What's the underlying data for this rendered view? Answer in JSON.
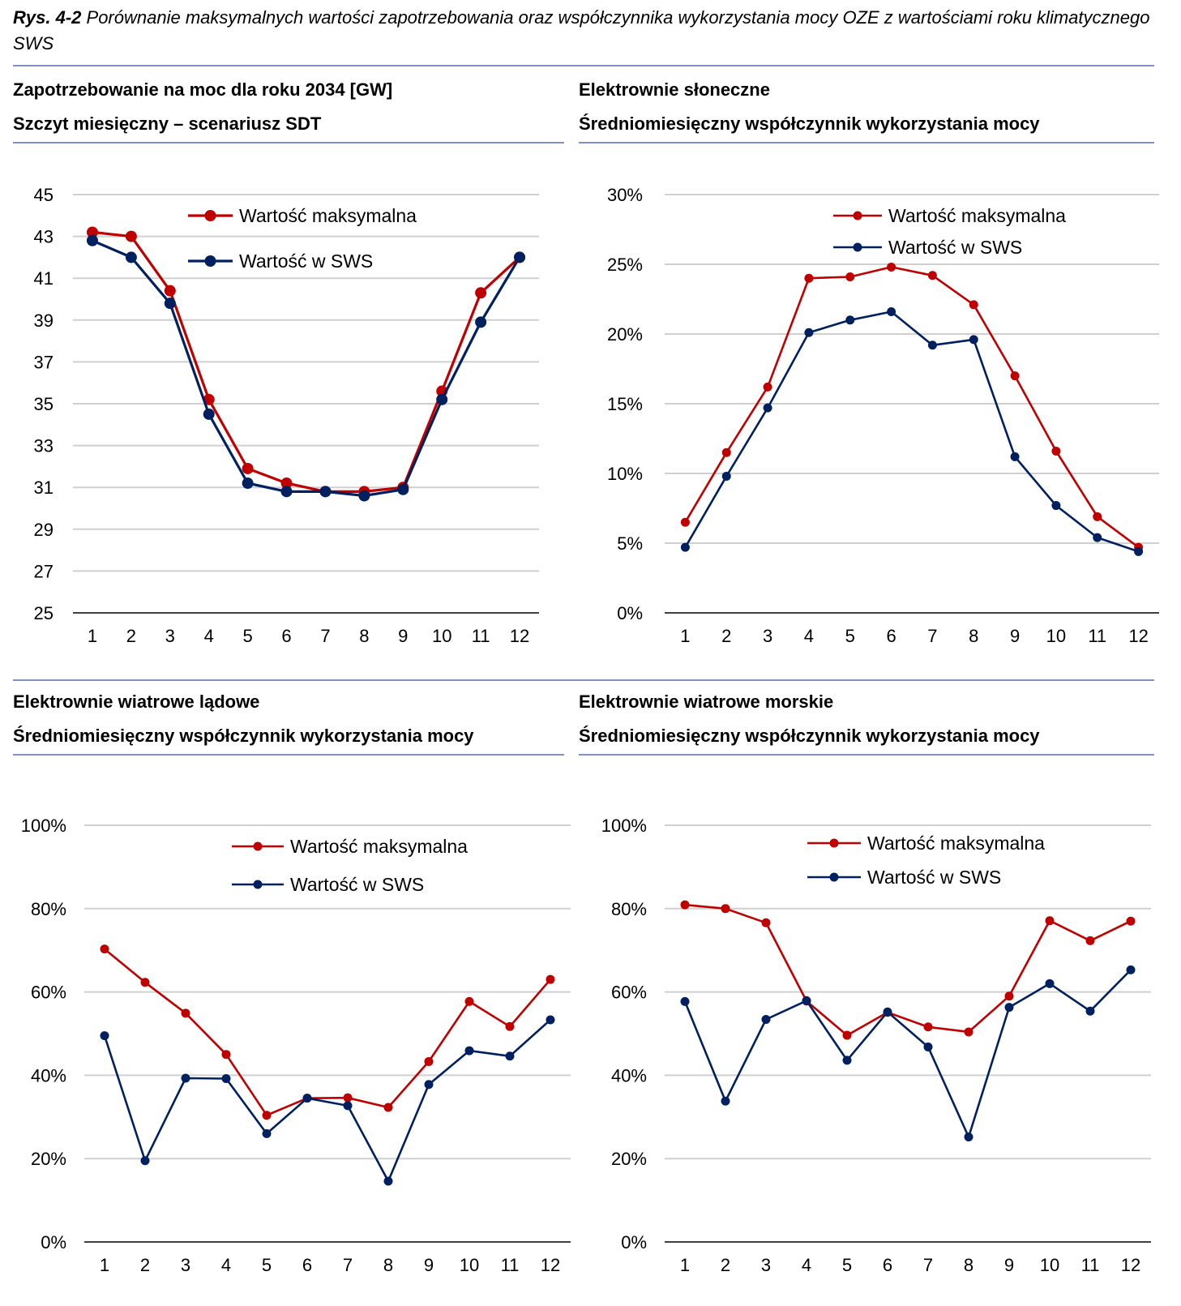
{
  "caption": {
    "label": "Rys. 4-2",
    "text": "Porównanie maksymalnych wartości zapotrzebowania oraz współczynnika wykorzystania mocy OZE z wartościami roku klimatycznego SWS"
  },
  "colors": {
    "max": "#c00000",
    "sws": "#002060",
    "rule": "#8490c4",
    "grid": "#d0d0d0"
  },
  "chart_data": [
    {
      "type": "line",
      "title": "Zapotrzebowanie na moc dla roku 2034 [GW]",
      "subtitle": "Szczyt miesięczny – scenariusz SDT",
      "categories": [
        "1",
        "2",
        "3",
        "4",
        "5",
        "6",
        "7",
        "8",
        "9",
        "10",
        "11",
        "12"
      ],
      "ylim": [
        25,
        45
      ],
      "yticks": [
        "45",
        "43",
        "41",
        "39",
        "37",
        "35",
        "33",
        "31",
        "29",
        "27",
        "25"
      ],
      "series": [
        {
          "name": "Wartość maksymalna",
          "values": [
            43.2,
            43.0,
            40.4,
            35.2,
            31.9,
            31.2,
            30.8,
            30.8,
            31.0,
            35.6,
            40.3,
            42.0
          ]
        },
        {
          "name": "Wartość w SWS",
          "values": [
            42.8,
            42.0,
            39.8,
            34.5,
            31.2,
            30.8,
            30.8,
            30.6,
            30.9,
            35.2,
            38.9,
            42.0
          ]
        }
      ],
      "legend": "top-right",
      "grid": true
    },
    {
      "type": "line",
      "title": "Elektrownie słoneczne",
      "subtitle": "Średniomiesięczny współczynnik wykorzystania mocy",
      "categories": [
        "1",
        "2",
        "3",
        "4",
        "5",
        "6",
        "7",
        "8",
        "9",
        "10",
        "11",
        "12"
      ],
      "ylim": [
        0,
        30
      ],
      "yticks": [
        "30%",
        "25%",
        "20%",
        "15%",
        "10%",
        "5%",
        "0%"
      ],
      "series": [
        {
          "name": "Wartość maksymalna",
          "values": [
            6.5,
            11.5,
            16.2,
            24.0,
            24.1,
            24.8,
            24.2,
            22.1,
            17.0,
            11.6,
            6.9,
            4.7
          ]
        },
        {
          "name": "Wartość w SWS",
          "values": [
            4.7,
            9.8,
            14.7,
            20.1,
            21.0,
            21.6,
            19.2,
            19.6,
            11.2,
            7.7,
            5.4,
            4.4
          ]
        }
      ],
      "legend": "top-right",
      "grid": true
    },
    {
      "type": "line",
      "title": "Elektrownie wiatrowe lądowe",
      "subtitle": "Średniomiesięczny współczynnik wykorzystania mocy",
      "categories": [
        "1",
        "2",
        "3",
        "4",
        "5",
        "6",
        "7",
        "8",
        "9",
        "10",
        "11",
        "12"
      ],
      "ylim": [
        0,
        100
      ],
      "yticks": [
        "100%",
        "80%",
        "60%",
        "40%",
        "20%",
        "0%"
      ],
      "series": [
        {
          "name": "Wartość maksymalna",
          "values": [
            70.3,
            62.3,
            54.9,
            45.0,
            30.4,
            34.5,
            34.6,
            32.3,
            43.3,
            57.7,
            51.7,
            63.0
          ]
        },
        {
          "name": "Wartość w SWS",
          "values": [
            49.5,
            19.5,
            39.3,
            39.2,
            26.0,
            34.5,
            32.7,
            14.6,
            37.8,
            45.9,
            44.6,
            53.3
          ]
        }
      ],
      "legend": "top-right",
      "grid": true
    },
    {
      "type": "line",
      "title": "Elektrownie wiatrowe morskie",
      "subtitle": "Średniomiesięczny współczynnik wykorzystania mocy",
      "categories": [
        "1",
        "2",
        "3",
        "4",
        "5",
        "6",
        "7",
        "8",
        "9",
        "10",
        "11",
        "12"
      ],
      "ylim": [
        0,
        100
      ],
      "yticks": [
        "100%",
        "80%",
        "60%",
        "40%",
        "20%",
        "0%"
      ],
      "series": [
        {
          "name": "Wartość maksymalna",
          "values": [
            80.9,
            80.0,
            76.6,
            57.8,
            49.6,
            55.1,
            51.6,
            50.4,
            59.0,
            77.1,
            72.3,
            77.0
          ]
        },
        {
          "name": "Wartość w SWS",
          "values": [
            57.7,
            33.8,
            53.4,
            57.9,
            43.6,
            55.2,
            46.8,
            25.2,
            56.3,
            62.0,
            55.4,
            65.3
          ]
        }
      ],
      "legend": "top-right",
      "grid": true
    }
  ]
}
